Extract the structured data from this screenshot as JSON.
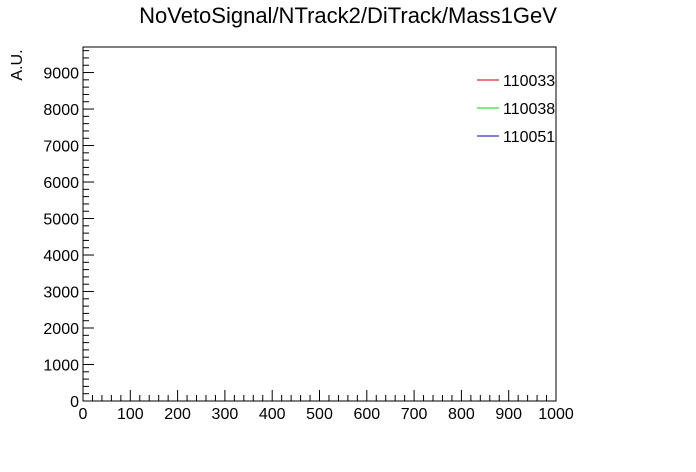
{
  "chart_data": {
    "type": "line",
    "title": "NoVetoSignal/NTrack2/DiTrack/Mass1GeV",
    "xlabel": "",
    "ylabel": "A.U.",
    "xlim": [
      0,
      1000
    ],
    "ylim": [
      0,
      9700
    ],
    "x_ticks": [
      0,
      100,
      200,
      300,
      400,
      500,
      600,
      700,
      800,
      900,
      1000
    ],
    "y_ticks": [
      0,
      1000,
      2000,
      3000,
      4000,
      5000,
      6000,
      7000,
      8000,
      9000
    ],
    "grid": false,
    "legend_position": "top-right",
    "series": [
      {
        "name": "110033",
        "color": "#cc0000",
        "x": [],
        "y": []
      },
      {
        "name": "110038",
        "color": "#00dd00",
        "x": [],
        "y": []
      },
      {
        "name": "110051",
        "color": "#0000aa",
        "x": [],
        "y": []
      }
    ]
  }
}
